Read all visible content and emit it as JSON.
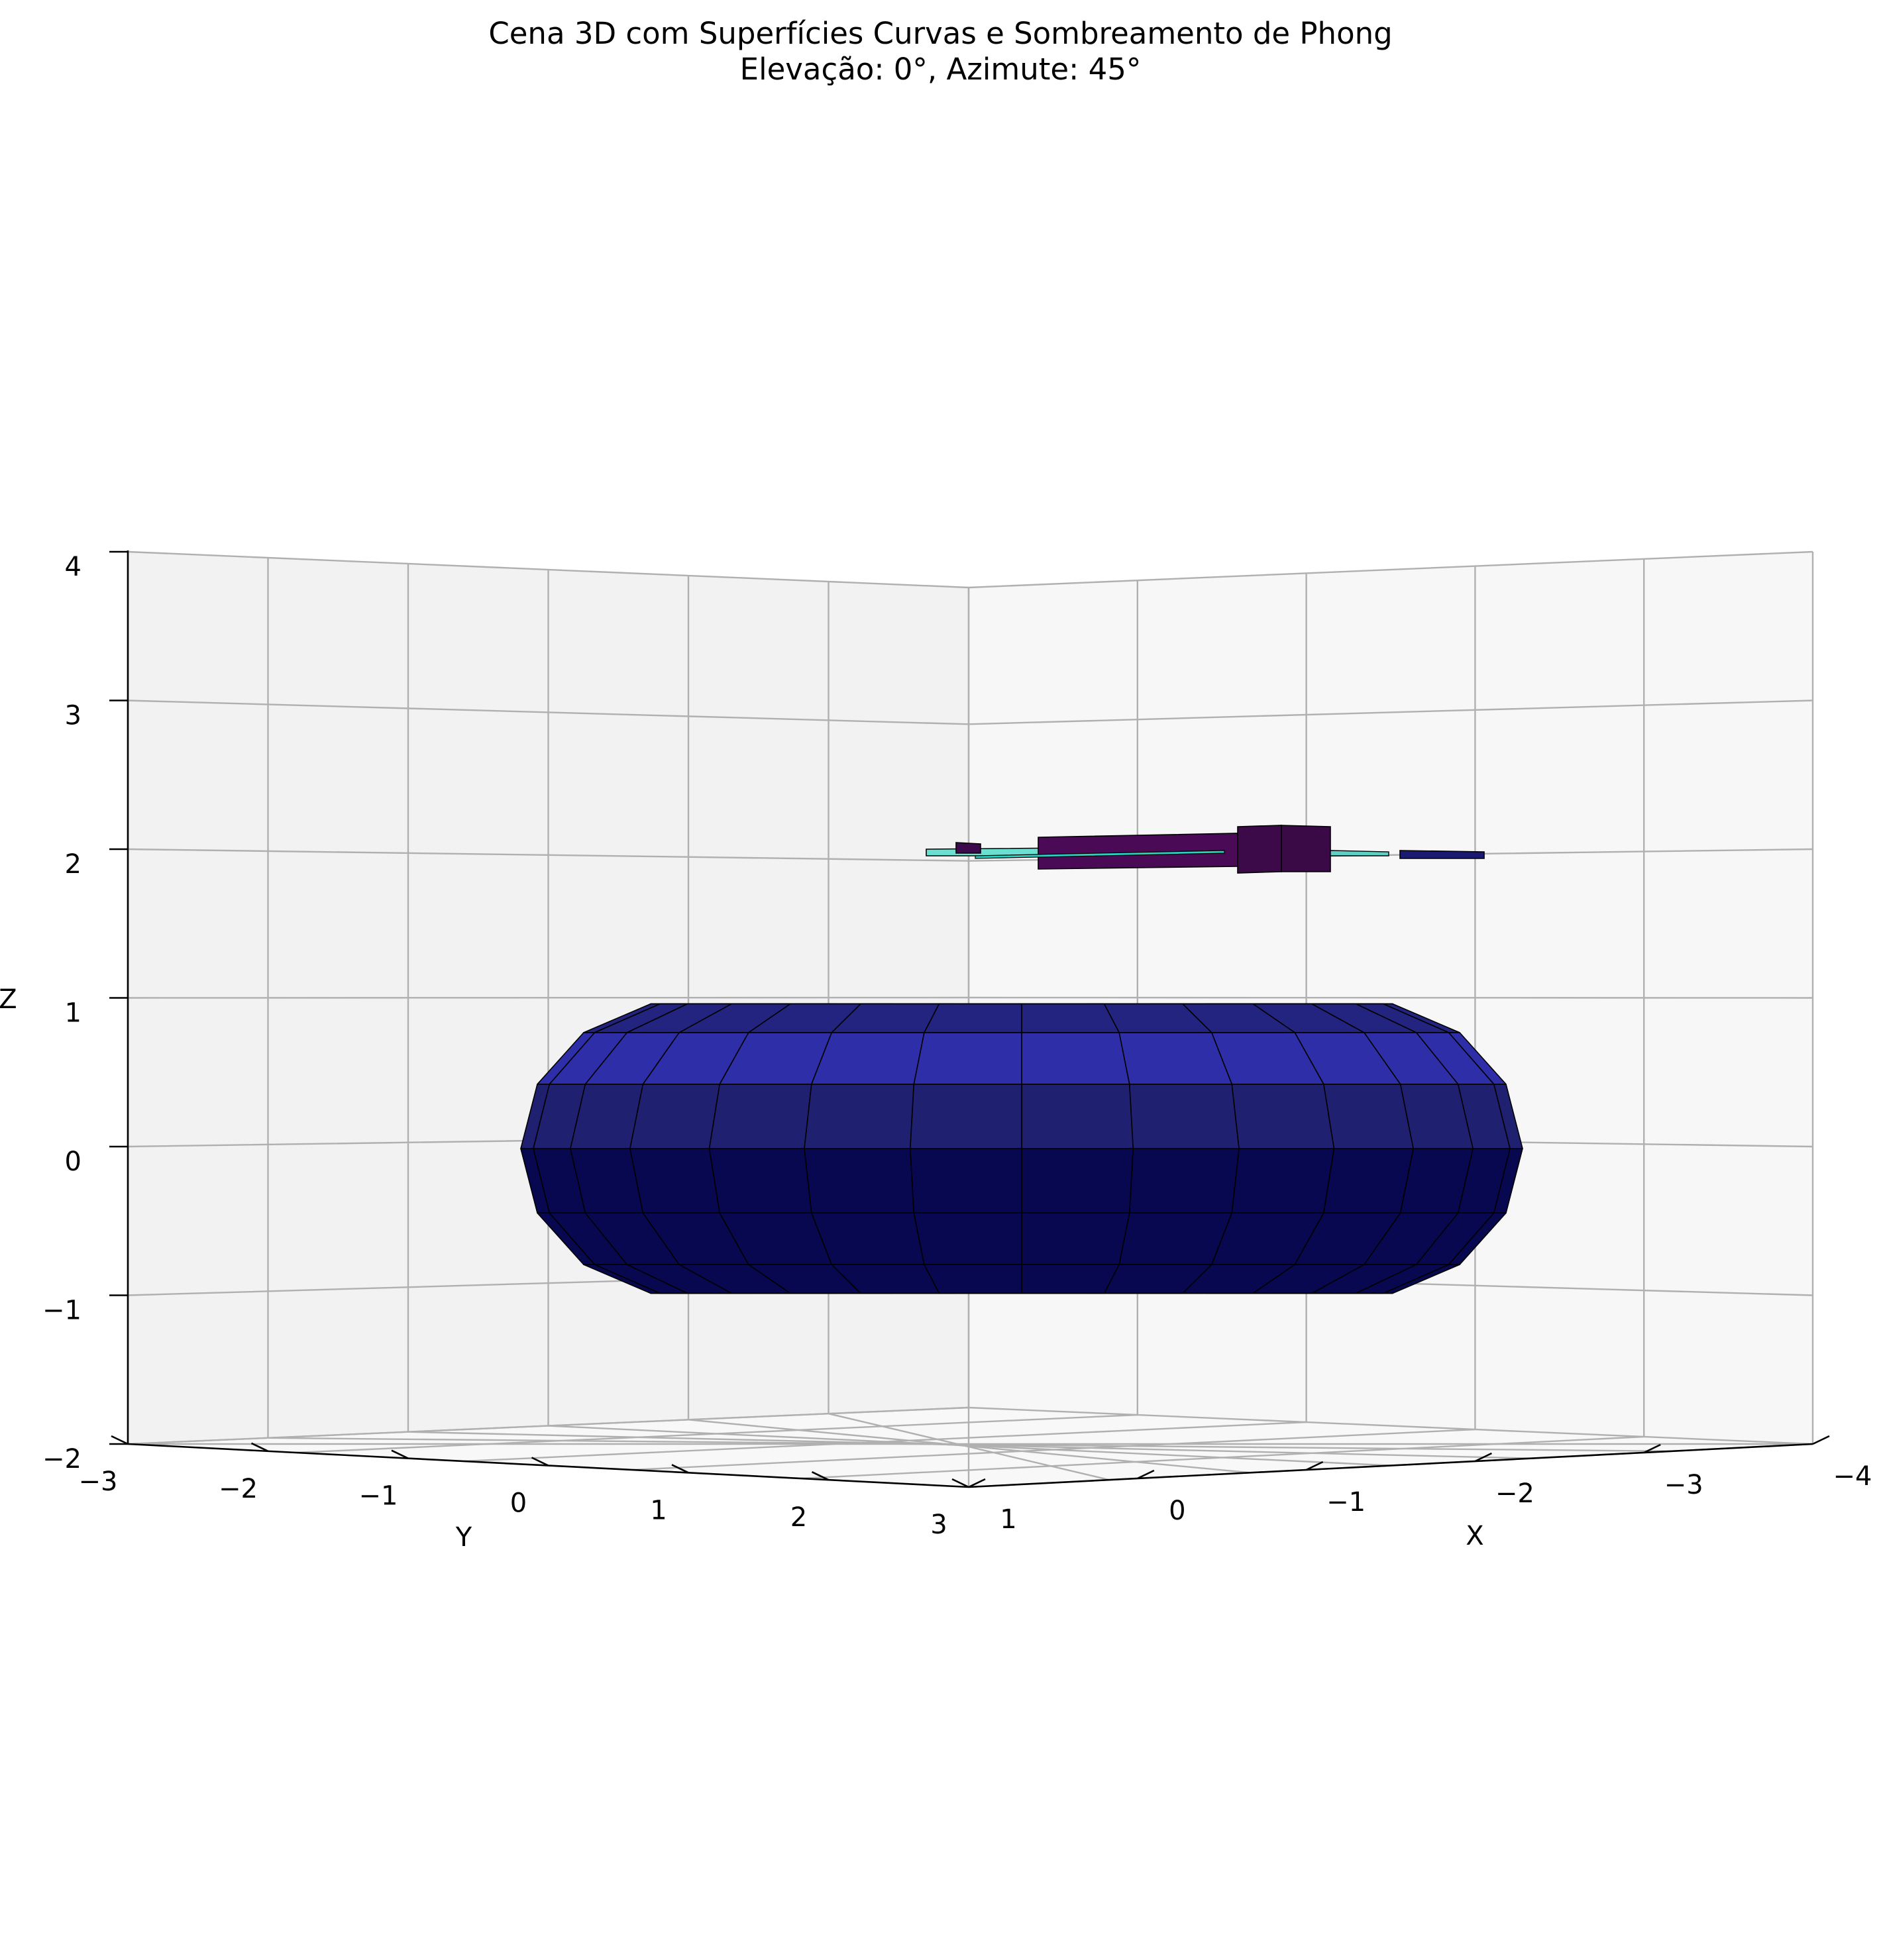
{
  "chart_data": {
    "type": "surface3d",
    "title": "Cena 3D com Superfícies Curvas e Sombreamento de Phong",
    "subtitle": "Elevação: 0°, Azimute: 45°",
    "view": {
      "elevation_deg": 0,
      "azimuth_deg": 45
    },
    "xlabel": "X",
    "ylabel": "Y",
    "zlabel": "Z",
    "x_ticks": [
      "1",
      "0",
      "−1",
      "−2",
      "−3",
      "−4"
    ],
    "y_ticks": [
      "−3",
      "−2",
      "−1",
      "0",
      "1",
      "2",
      "3"
    ],
    "z_ticks": [
      "−2",
      "−1",
      "0",
      "1",
      "2",
      "3",
      "4"
    ],
    "xlim": [
      -4,
      1
    ],
    "ylim": [
      -3,
      3
    ],
    "zlim": [
      -2,
      4
    ],
    "grid": true,
    "objects": [
      {
        "name": "torus",
        "center": [
          -1.5,
          0,
          0
        ],
        "major_radius": 2,
        "minor_radius": 1,
        "color": "#0a0a5a"
      },
      {
        "name": "thin-bar-left",
        "z": 2.0,
        "color": "#3a0a4a"
      },
      {
        "name": "long-bar",
        "z": 2.0,
        "color": "#4a0a55"
      },
      {
        "name": "cube",
        "z": 2.0,
        "color": "#3c0a48"
      },
      {
        "name": "flat-blue-bar",
        "z": 1.97,
        "color": "#1a1a70"
      }
    ]
  }
}
